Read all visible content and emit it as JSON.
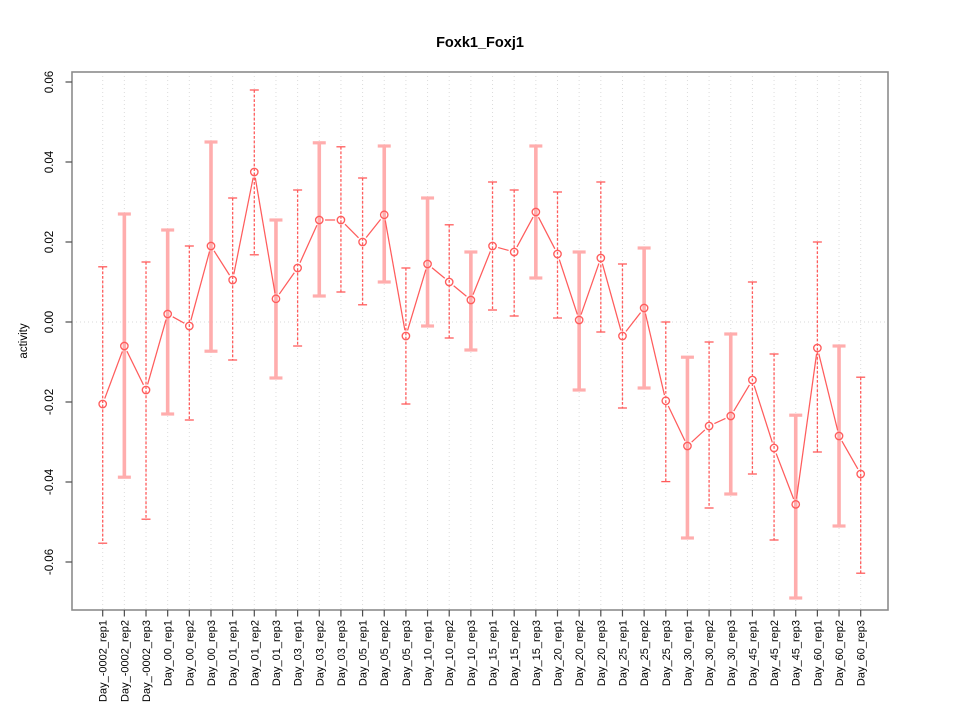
{
  "chart_data": {
    "type": "scatter",
    "title": "Foxk1_Foxj1",
    "xlabel": "",
    "ylabel": "activity",
    "ylim": [
      -0.072,
      0.0625
    ],
    "grid": "vertical-dotted-per-category-plus-zero-line",
    "legend": "none",
    "y_ticks": [
      0.06,
      0.04,
      0.02,
      0.0,
      -0.02,
      -0.04,
      -0.06
    ],
    "y_tick_labels": [
      "0.06",
      "0.04",
      "0.02",
      "0.00",
      "-0.02",
      "-0.04",
      "-0.06"
    ],
    "categories": [
      "Day_-0002_rep1",
      "Day_-0002_rep2",
      "Day_-0002_rep3",
      "Day_00_rep1",
      "Day_00_rep2",
      "Day_00_rep3",
      "Day_01_rep1",
      "Day_01_rep2",
      "Day_01_rep3",
      "Day_03_rep1",
      "Day_03_rep2",
      "Day_03_rep3",
      "Day_05_rep1",
      "Day_05_rep2",
      "Day_05_rep3",
      "Day_10_rep1",
      "Day_10_rep2",
      "Day_10_rep3",
      "Day_15_rep1",
      "Day_15_rep2",
      "Day_15_rep3",
      "Day_20_rep1",
      "Day_20_rep2",
      "Day_20_rep3",
      "Day_25_rep1",
      "Day_25_rep2",
      "Day_25_rep3",
      "Day_30_rep1",
      "Day_30_rep2",
      "Day_30_rep3",
      "Day_45_rep1",
      "Day_45_rep2",
      "Day_45_rep3",
      "Day_60_rep1",
      "Day_60_rep2",
      "Day_60_rep3"
    ],
    "series": [
      {
        "name": "activity",
        "values": [
          -0.0205,
          -0.006,
          -0.017,
          0.002,
          -0.001,
          0.019,
          0.0105,
          0.0375,
          0.0058,
          0.0135,
          0.0255,
          0.0255,
          0.02,
          0.0268,
          -0.0035,
          0.0145,
          0.01,
          0.0055,
          0.019,
          0.0175,
          0.0275,
          0.017,
          0.0005,
          0.016,
          -0.0035,
          0.0035,
          -0.0197,
          -0.031,
          -0.026,
          -0.0235,
          -0.0145,
          -0.0315,
          -0.0456,
          -0.0065,
          -0.0285,
          -0.038
        ],
        "err_hi": [
          0.0138,
          0.027,
          0.015,
          0.023,
          0.019,
          0.045,
          0.031,
          0.058,
          0.0255,
          0.033,
          0.0448,
          0.0438,
          0.036,
          0.044,
          0.0135,
          0.031,
          0.0243,
          0.0175,
          0.035,
          0.033,
          0.044,
          0.0325,
          0.0175,
          0.035,
          0.0145,
          0.0185,
          0.0,
          -0.0088,
          -0.005,
          -0.003,
          0.01,
          -0.008,
          -0.0233,
          0.02,
          -0.006,
          -0.0138
        ],
        "err_lo": [
          -0.0553,
          -0.0388,
          -0.0493,
          -0.023,
          -0.0245,
          -0.0073,
          -0.0095,
          0.0168,
          -0.014,
          -0.006,
          0.0065,
          0.0075,
          0.0043,
          0.01,
          -0.0205,
          -0.001,
          -0.004,
          -0.007,
          0.003,
          0.0015,
          0.011,
          0.001,
          -0.017,
          -0.0025,
          -0.0215,
          -0.0165,
          -0.0399,
          -0.054,
          -0.0465,
          -0.043,
          -0.038,
          -0.0545,
          -0.069,
          -0.0325,
          -0.051,
          -0.0628
        ],
        "bar_style": [
          "thin",
          "thick",
          "thin",
          "thick",
          "thin",
          "thick",
          "thin",
          "thin",
          "thick",
          "thin",
          "thick",
          "thin",
          "thin",
          "thick",
          "thin",
          "thick",
          "thin",
          "thick",
          "thin",
          "thin",
          "thick",
          "thin",
          "thick",
          "thin",
          "thin",
          "thick",
          "thin",
          "thick",
          "thin",
          "thick",
          "thin",
          "thin",
          "thick",
          "thin",
          "thick",
          "thin"
        ]
      }
    ]
  },
  "colors": {
    "point_red": "#ff5c5c",
    "thick_bar_pink": "#ffadad",
    "grid_gray": "#dcdcdc",
    "zero_line_gray": "#d8d8d8",
    "frame_gray": "#8c8c8c",
    "tick_gray": "#4d4d4d",
    "text_black": "#000000",
    "background": "#ffffff"
  }
}
